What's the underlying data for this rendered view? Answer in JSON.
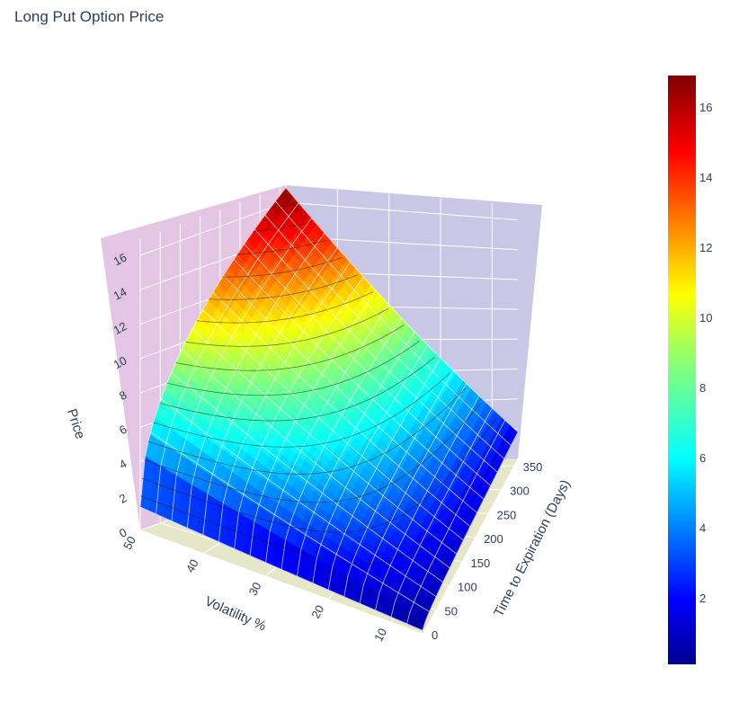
{
  "page": {
    "title": "Long Put Option Price"
  },
  "chart_data": {
    "type": "surface",
    "title": "Long Put Option Price",
    "axes": {
      "x": {
        "label": "Volatility %",
        "ticks": [
          10,
          20,
          30,
          40,
          50
        ],
        "range": [
          5,
          50
        ]
      },
      "y": {
        "label": "Time to Expiration (Days)",
        "ticks": [
          0,
          50,
          100,
          150,
          200,
          250,
          300,
          350
        ],
        "range": [
          0,
          365
        ]
      },
      "z": {
        "label": "Price",
        "ticks": [
          0,
          2,
          4,
          6,
          8,
          10,
          12,
          14,
          16
        ],
        "range": [
          0,
          17
        ]
      }
    },
    "surface": {
      "model": "price grows with volatility and time to expiration",
      "corner_values": [
        {
          "volatility": 5,
          "days": 0,
          "price": 0.1
        },
        {
          "volatility": 50,
          "days": 0,
          "price": 1.5
        },
        {
          "volatility": 5,
          "days": 365,
          "price": 1.3
        },
        {
          "volatility": 50,
          "days": 365,
          "price": 16.8
        }
      ]
    },
    "colorscale": "jet",
    "colorbar": {
      "ticks": [
        2,
        4,
        6,
        8,
        10,
        12,
        14,
        16
      ],
      "range": [
        0.1,
        16.9
      ]
    },
    "grid": true
  }
}
